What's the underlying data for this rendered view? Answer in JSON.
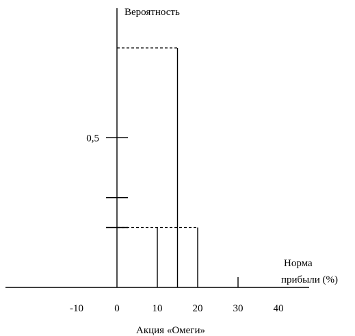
{
  "chart_data": {
    "type": "bar",
    "title": "",
    "xlabel": "Акция «Омеги»",
    "xlabel_right_line1": "Норма",
    "xlabel_right_line2": "прибыли (%)",
    "ylabel": "Вероятность",
    "x_ticks": [
      "-10",
      "0",
      "10",
      "20",
      "30",
      "40"
    ],
    "x_tick_values": [
      -10,
      0,
      10,
      20,
      30,
      40
    ],
    "y_ticks": [
      0.2,
      0.3,
      0.5
    ],
    "y_tick_labels": [
      "",
      "",
      "0,5"
    ],
    "series": [
      {
        "x": 15,
        "value": 0.8
      },
      {
        "x": 10,
        "value": 0.2
      },
      {
        "x": 20,
        "value": 0.2
      }
    ],
    "xlim": [
      -20,
      45
    ],
    "ylim": [
      0,
      1
    ],
    "grid": false
  }
}
